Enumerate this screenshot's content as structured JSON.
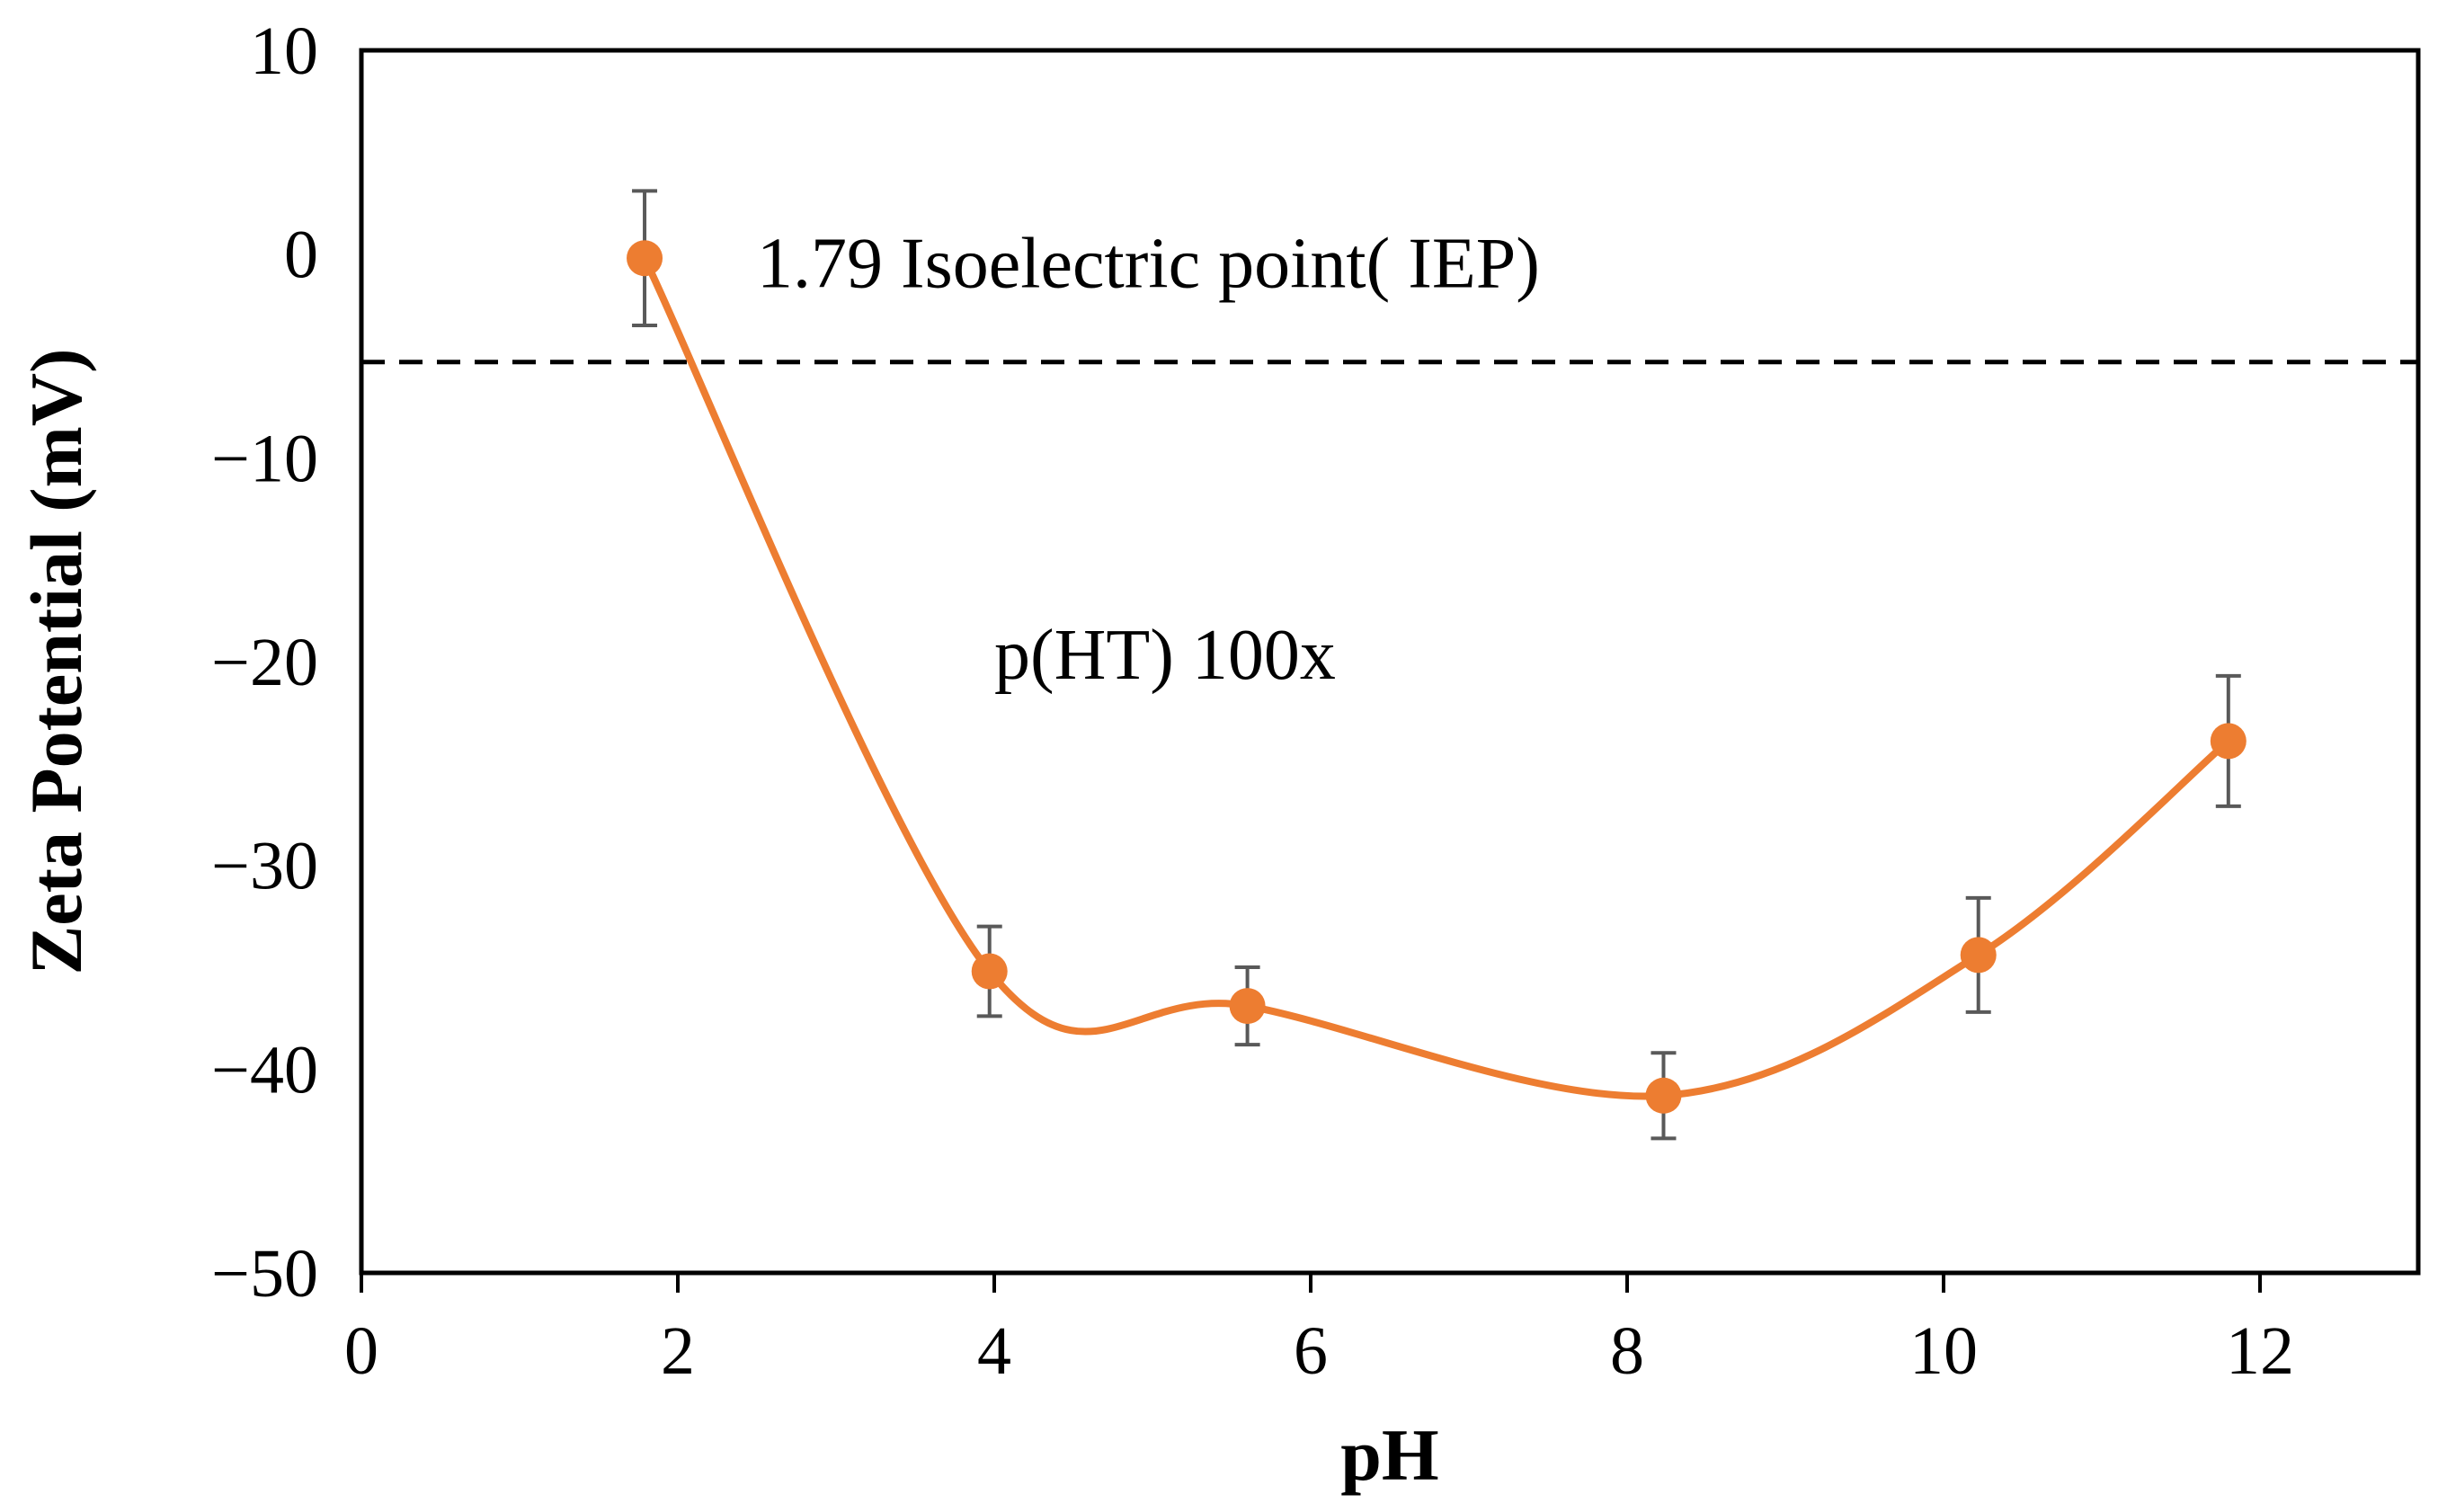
{
  "chart_data": {
    "type": "line",
    "title": "",
    "xlabel": "pH",
    "ylabel": "Zeta Potential (mV)",
    "xlim": [
      0,
      13
    ],
    "ylim": [
      -50,
      10
    ],
    "xticks": [
      0,
      2,
      4,
      6,
      8,
      10,
      12
    ],
    "yticks": [
      10,
      0,
      -10,
      -20,
      -30,
      -40,
      -50
    ],
    "ytick_labels": [
      "10",
      "0",
      "−10",
      "−20",
      "−30",
      "−40",
      "−50"
    ],
    "grid": false,
    "series": [
      {
        "name": "p(HT) 100x",
        "color": "#ED7D31",
        "smooth": true,
        "x": [
          1.79,
          3.97,
          5.6,
          8.23,
          10.22,
          11.8
        ],
        "y": [
          -0.2,
          -35.2,
          -36.9,
          -41.3,
          -34.4,
          -23.9
        ],
        "error": [
          3.3,
          2.2,
          1.9,
          2.1,
          2.8,
          3.2
        ]
      }
    ],
    "reference_line": {
      "y": -5.3,
      "style": "dashed",
      "color": "#000000"
    },
    "annotations": [
      {
        "text": "1.79 Isoelectric point( IEP)",
        "x": 2.5,
        "y": -0.4
      },
      {
        "text": "p(HT) 100x",
        "x": 4.0,
        "y": -19.6
      }
    ],
    "errorbar_color": "#595959"
  }
}
